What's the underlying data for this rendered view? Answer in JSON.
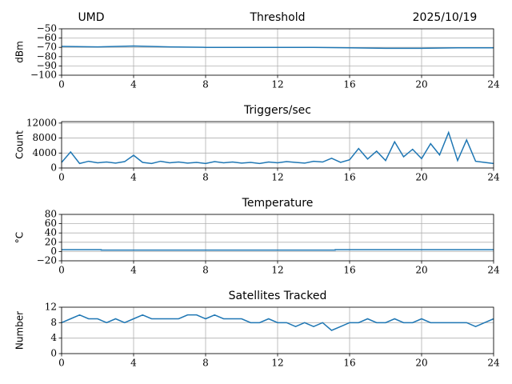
{
  "chart_data": [
    {
      "type": "line",
      "title": "Threshold",
      "annotations": [
        "UMD",
        "2025/10/19"
      ],
      "ylabel": "dBm",
      "x": [
        0,
        2,
        4,
        6,
        8,
        10,
        12,
        14,
        16,
        18,
        20,
        22,
        24
      ],
      "series": [
        {
          "name": "Threshold",
          "color": "#1f77b4",
          "values": [
            -69,
            -69.5,
            -68.5,
            -69.5,
            -70,
            -70,
            -70,
            -70,
            -70.5,
            -71,
            -71,
            -70.5,
            -70.5
          ]
        }
      ],
      "xlim": [
        0,
        24
      ],
      "xticks": [
        0,
        4,
        8,
        12,
        16,
        20,
        24
      ],
      "ylim": [
        -100,
        -50
      ],
      "yticks": [
        {
          "value": -100,
          "label": "−100"
        },
        {
          "value": -90,
          "label": "−90"
        },
        {
          "value": -80,
          "label": "−80"
        },
        {
          "value": -70,
          "label": "−70"
        },
        {
          "value": -60,
          "label": "−60"
        },
        {
          "value": -50,
          "label": "−50"
        }
      ],
      "grid": true
    },
    {
      "type": "line",
      "title": "Triggers/sec",
      "ylabel": "Count",
      "x": [
        0,
        0.5,
        1,
        1.5,
        2,
        2.5,
        3,
        3.5,
        4,
        4.5,
        5,
        5.5,
        6,
        6.5,
        7,
        7.5,
        8,
        8.5,
        9,
        9.5,
        10,
        10.5,
        11,
        11.5,
        12,
        12.5,
        13,
        13.5,
        14,
        14.5,
        15,
        15.5,
        16,
        16.5,
        17,
        17.5,
        18,
        18.5,
        19,
        19.5,
        20,
        20.5,
        21,
        21.5,
        22,
        22.5,
        23,
        23.5,
        24
      ],
      "series": [
        {
          "name": "Triggers/sec",
          "color": "#1f77b4",
          "values": [
            1500,
            4300,
            1200,
            1800,
            1400,
            1600,
            1300,
            1700,
            3400,
            1500,
            1200,
            1800,
            1400,
            1600,
            1300,
            1500,
            1200,
            1700,
            1400,
            1600,
            1300,
            1500,
            1200,
            1600,
            1400,
            1700,
            1500,
            1300,
            1800,
            1600,
            2600,
            1500,
            2200,
            5200,
            2400,
            4500,
            2000,
            7000,
            3000,
            5000,
            2500,
            6500,
            3500,
            9500,
            2000,
            7500,
            1800,
            1500,
            1200
          ]
        }
      ],
      "xlim": [
        0,
        24
      ],
      "xticks": [
        0,
        4,
        8,
        12,
        16,
        20,
        24
      ],
      "ylim": [
        0,
        12400
      ],
      "yticks": [
        0,
        4000,
        8000,
        12000
      ],
      "grid": true
    },
    {
      "type": "line",
      "title": "Temperature",
      "ylabel": "°C",
      "x": [
        0,
        2.2,
        2.2,
        15.2,
        15.2,
        24
      ],
      "series": [
        {
          "name": "Temperature",
          "color": "#1f77b4",
          "values": [
            4,
            4,
            3,
            3,
            4,
            4
          ]
        }
      ],
      "xlim": [
        0,
        24
      ],
      "xticks": [
        0,
        4,
        8,
        12,
        16,
        20,
        24
      ],
      "ylim": [
        -20,
        80
      ],
      "yticks": [
        {
          "value": -20,
          "label": "−20"
        },
        0,
        20,
        40,
        60,
        80
      ],
      "grid": true
    },
    {
      "type": "line",
      "title": "Satellites Tracked",
      "ylabel": "Number",
      "x": [
        0,
        0.5,
        1,
        1.5,
        2,
        2.5,
        3,
        3.5,
        4,
        4.5,
        5,
        5.5,
        6,
        6.5,
        7,
        7.5,
        8,
        8.5,
        9,
        9.5,
        10,
        10.5,
        11,
        11.5,
        12,
        12.5,
        13,
        13.5,
        14,
        14.5,
        15,
        15.5,
        16,
        16.5,
        17,
        17.5,
        18,
        18.5,
        19,
        19.5,
        20,
        20.5,
        21,
        21.5,
        22,
        22.5,
        23,
        23.5,
        24
      ],
      "series": [
        {
          "name": "Satellites Tracked",
          "color": "#1f77b4",
          "values": [
            8,
            9,
            10,
            9,
            9,
            8,
            9,
            8,
            9,
            10,
            9,
            9,
            9,
            9,
            10,
            10,
            9,
            10,
            9,
            9,
            9,
            8,
            8,
            9,
            8,
            8,
            7,
            8,
            7,
            8,
            6,
            7,
            8,
            8,
            9,
            8,
            8,
            9,
            8,
            8,
            9,
            8,
            8,
            8,
            8,
            8,
            7,
            8,
            9
          ]
        }
      ],
      "xlim": [
        0,
        24
      ],
      "xticks": [
        0,
        4,
        8,
        12,
        16,
        20,
        24
      ],
      "ylim": [
        0,
        12
      ],
      "yticks": [
        0,
        4,
        8,
        12
      ],
      "grid": true
    }
  ]
}
